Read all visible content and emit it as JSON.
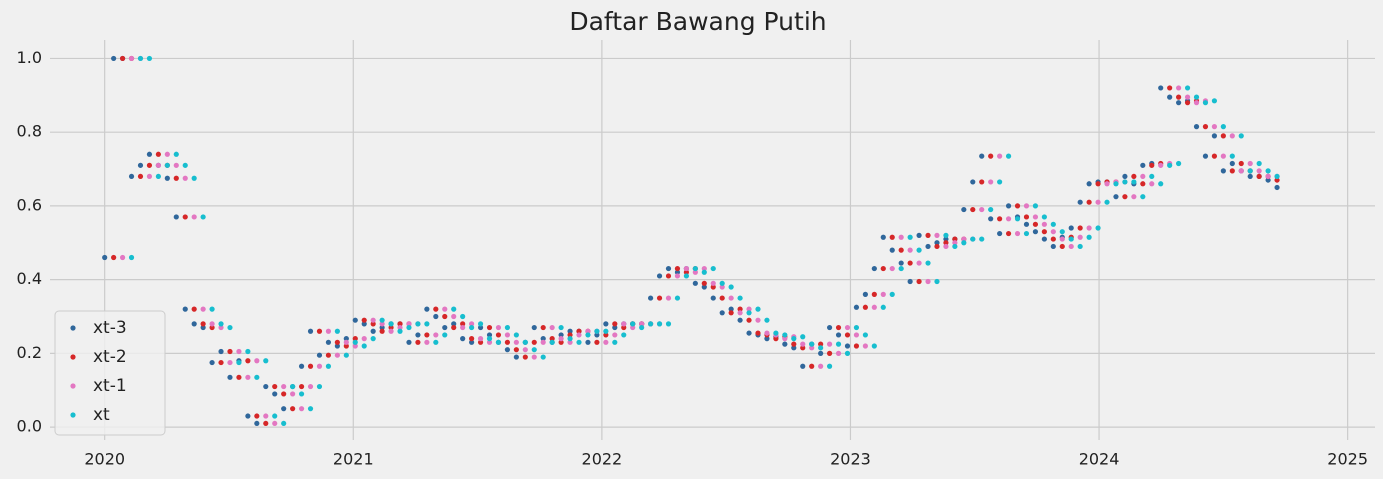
{
  "chart_data": {
    "type": "scatter",
    "title": "Daftar Bawang Putih",
    "xlim": [
      2019.78,
      2025.11
    ],
    "xticks": [
      2020,
      2021,
      2022,
      2023,
      2024,
      2025
    ],
    "ylim": [
      -0.035,
      1.05
    ],
    "yticks": [
      {
        "value": 0,
        "label": "0.0"
      },
      0.2,
      0.4,
      0.6,
      0.8,
      {
        "value": 1,
        "label": "1.0"
      }
    ],
    "grid": true,
    "legend": "lower left",
    "x": [
      2020,
      2020.036,
      2020.072,
      2020.108,
      2020.144,
      2020.18,
      2020.216,
      2020.252,
      2020.288,
      2020.324,
      2020.36,
      2020.396,
      2020.432,
      2020.468,
      2020.504,
      2020.54,
      2020.576,
      2020.612,
      2020.648,
      2020.684,
      2020.72,
      2020.756,
      2020.792,
      2020.828,
      2020.864,
      2020.9,
      2020.936,
      2020.972,
      2021.008,
      2021.044,
      2021.08,
      2021.116,
      2021.152,
      2021.188,
      2021.224,
      2021.26,
      2021.296,
      2021.332,
      2021.368,
      2021.404,
      2021.44,
      2021.476,
      2021.512,
      2021.548,
      2021.584,
      2021.62,
      2021.656,
      2021.692,
      2021.728,
      2021.764,
      2021.8,
      2021.836,
      2021.872,
      2021.908,
      2021.944,
      2021.98,
      2022.016,
      2022.052,
      2022.088,
      2022.124,
      2022.16,
      2022.196,
      2022.232,
      2022.268,
      2022.304,
      2022.34,
      2022.376,
      2022.412,
      2022.448,
      2022.484,
      2022.52,
      2022.556,
      2022.592,
      2022.628,
      2022.664,
      2022.7,
      2022.736,
      2022.772,
      2022.808,
      2022.844,
      2022.88,
      2022.916,
      2022.952,
      2022.988,
      2023.024,
      2023.06,
      2023.096,
      2023.132,
      2023.168,
      2023.204,
      2023.24,
      2023.276,
      2023.312,
      2023.348,
      2023.384,
      2023.42,
      2023.456,
      2023.492,
      2023.528,
      2023.564,
      2023.6,
      2023.636,
      2023.672,
      2023.708,
      2023.744,
      2023.78,
      2023.816,
      2023.852,
      2023.888,
      2023.924,
      2023.96,
      2023.996,
      2024.032,
      2024.068,
      2024.104,
      2024.14,
      2024.176,
      2024.212,
      2024.248,
      2024.284,
      2024.32,
      2024.356,
      2024.392,
      2024.428,
      2024.464,
      2024.5,
      2024.536,
      2024.572,
      2024.608,
      2024.644,
      2024.68,
      2024.716
    ],
    "series": [
      {
        "name": "xt-3",
        "color": "#30679b",
        "values": [
          0.46,
          1.0,
          1.0,
          0.68,
          0.71,
          0.74,
          0.71,
          0.675,
          0.57,
          0.32,
          0.28,
          0.27,
          0.175,
          0.205,
          0.135,
          0.18,
          0.03,
          0.01,
          0.11,
          0.09,
          0.05,
          0.11,
          0.165,
          0.26,
          0.195,
          0.23,
          0.22,
          0.24,
          0.29,
          0.28,
          0.26,
          0.27,
          0.28,
          0.28,
          0.23,
          0.25,
          0.32,
          0.3,
          0.27,
          0.28,
          0.24,
          0.23,
          0.27,
          0.25,
          0.23,
          0.21,
          0.19,
          0.23,
          0.27,
          0.24,
          0.23,
          0.25,
          0.26,
          0.26,
          0.23,
          0.25,
          0.28,
          0.27,
          0.28,
          0.28,
          0.28,
          0.35,
          0.41,
          0.43,
          0.42,
          0.43,
          0.39,
          0.38,
          0.35,
          0.31,
          0.32,
          0.29,
          0.255,
          0.25,
          0.24,
          0.245,
          0.225,
          0.215,
          0.165,
          0.225,
          0.2,
          0.27,
          0.25,
          0.22,
          0.325,
          0.36,
          0.43,
          0.515,
          0.48,
          0.445,
          0.395,
          0.52,
          0.49,
          0.5,
          0.51,
          0.51,
          0.59,
          0.665,
          0.735,
          0.565,
          0.525,
          0.6,
          0.57,
          0.55,
          0.53,
          0.51,
          0.49,
          0.515,
          0.54,
          0.61,
          0.66,
          0.665,
          0.665,
          0.625,
          0.68,
          0.66,
          0.71,
          0.715,
          0.92,
          0.895,
          0.88,
          0.885,
          0.815,
          0.735,
          0.79,
          0.695,
          0.715,
          0.695,
          0.68,
          0.68,
          0.67,
          0.65
        ]
      },
      {
        "name": "xt-2",
        "color": "#d62728",
        "values": [
          null,
          0.46,
          1.0,
          1.0,
          0.68,
          0.71,
          0.74,
          0.71,
          0.675,
          0.57,
          0.32,
          0.28,
          0.27,
          0.175,
          0.205,
          0.135,
          0.18,
          0.03,
          0.01,
          0.11,
          0.09,
          0.05,
          0.11,
          0.165,
          0.26,
          0.195,
          0.23,
          0.22,
          0.24,
          0.29,
          0.28,
          0.26,
          0.27,
          0.28,
          0.28,
          0.23,
          0.25,
          0.32,
          0.3,
          0.27,
          0.28,
          0.24,
          0.23,
          0.27,
          0.25,
          0.23,
          0.21,
          0.19,
          0.23,
          0.27,
          0.24,
          0.23,
          0.25,
          0.26,
          0.26,
          0.23,
          0.25,
          0.28,
          0.27,
          0.28,
          0.28,
          0.28,
          0.35,
          0.41,
          0.43,
          0.42,
          0.43,
          0.39,
          0.38,
          0.35,
          0.31,
          0.32,
          0.29,
          0.255,
          0.25,
          0.24,
          0.245,
          0.225,
          0.215,
          0.165,
          0.225,
          0.2,
          0.27,
          0.25,
          0.22,
          0.325,
          0.36,
          0.43,
          0.515,
          0.48,
          0.445,
          0.395,
          0.52,
          0.49,
          0.5,
          0.51,
          0.51,
          0.59,
          0.665,
          0.735,
          0.565,
          0.525,
          0.6,
          0.57,
          0.55,
          0.53,
          0.51,
          0.49,
          0.515,
          0.54,
          0.61,
          0.66,
          0.665,
          0.665,
          0.625,
          0.68,
          0.66,
          0.71,
          0.715,
          0.92,
          0.895,
          0.88,
          0.885,
          0.815,
          0.735,
          0.79,
          0.695,
          0.715,
          0.695,
          0.68,
          0.68,
          0.67
        ]
      },
      {
        "name": "xt-1",
        "color": "#e377c2",
        "values": [
          null,
          null,
          0.46,
          1.0,
          1.0,
          0.68,
          0.71,
          0.74,
          0.71,
          0.675,
          0.57,
          0.32,
          0.28,
          0.27,
          0.175,
          0.205,
          0.135,
          0.18,
          0.03,
          0.01,
          0.11,
          0.09,
          0.05,
          0.11,
          0.165,
          0.26,
          0.195,
          0.23,
          0.22,
          0.24,
          0.29,
          0.28,
          0.26,
          0.27,
          0.28,
          0.28,
          0.23,
          0.25,
          0.32,
          0.3,
          0.27,
          0.28,
          0.24,
          0.23,
          0.27,
          0.25,
          0.23,
          0.21,
          0.19,
          0.23,
          0.27,
          0.24,
          0.23,
          0.25,
          0.26,
          0.26,
          0.23,
          0.25,
          0.28,
          0.27,
          0.28,
          0.28,
          0.28,
          0.35,
          0.41,
          0.43,
          0.42,
          0.43,
          0.39,
          0.38,
          0.35,
          0.31,
          0.32,
          0.29,
          0.255,
          0.25,
          0.24,
          0.245,
          0.225,
          0.215,
          0.165,
          0.225,
          0.2,
          0.27,
          0.25,
          0.22,
          0.325,
          0.36,
          0.43,
          0.515,
          0.48,
          0.445,
          0.395,
          0.52,
          0.49,
          0.5,
          0.51,
          0.51,
          0.59,
          0.665,
          0.735,
          0.565,
          0.525,
          0.6,
          0.57,
          0.55,
          0.53,
          0.51,
          0.49,
          0.515,
          0.54,
          0.61,
          0.66,
          0.665,
          0.665,
          0.625,
          0.68,
          0.66,
          0.71,
          0.715,
          0.92,
          0.895,
          0.88,
          0.885,
          0.815,
          0.735,
          0.79,
          0.695,
          0.715,
          0.695,
          0.68,
          0.68
        ]
      },
      {
        "name": "xt",
        "color": "#17becf",
        "values": [
          null,
          null,
          null,
          0.46,
          1.0,
          1.0,
          0.68,
          0.71,
          0.74,
          0.71,
          0.675,
          0.57,
          0.32,
          0.28,
          0.27,
          0.175,
          0.205,
          0.135,
          0.18,
          0.03,
          0.01,
          0.11,
          0.09,
          0.05,
          0.11,
          0.165,
          0.26,
          0.195,
          0.23,
          0.22,
          0.24,
          0.29,
          0.28,
          0.26,
          0.27,
          0.28,
          0.28,
          0.23,
          0.25,
          0.32,
          0.3,
          0.27,
          0.28,
          0.24,
          0.23,
          0.27,
          0.25,
          0.23,
          0.21,
          0.19,
          0.23,
          0.27,
          0.24,
          0.23,
          0.25,
          0.26,
          0.26,
          0.23,
          0.25,
          0.28,
          0.27,
          0.28,
          0.28,
          0.28,
          0.35,
          0.41,
          0.43,
          0.42,
          0.43,
          0.39,
          0.38,
          0.35,
          0.31,
          0.32,
          0.29,
          0.255,
          0.25,
          0.24,
          0.245,
          0.225,
          0.215,
          0.165,
          0.225,
          0.2,
          0.27,
          0.25,
          0.22,
          0.325,
          0.36,
          0.43,
          0.515,
          0.48,
          0.445,
          0.395,
          0.52,
          0.49,
          0.5,
          0.51,
          0.51,
          0.59,
          0.665,
          0.735,
          0.565,
          0.525,
          0.6,
          0.57,
          0.55,
          0.53,
          0.51,
          0.49,
          0.515,
          0.54,
          0.61,
          0.66,
          0.665,
          0.665,
          0.625,
          0.68,
          0.66,
          0.71,
          0.715,
          0.92,
          0.895,
          0.88,
          0.885,
          0.815,
          0.735,
          0.79,
          0.695,
          0.715,
          0.695,
          0.68
        ]
      }
    ]
  }
}
